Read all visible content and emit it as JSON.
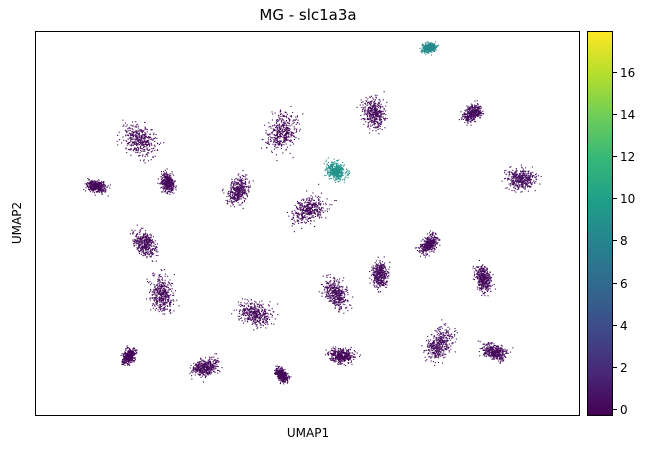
{
  "chart_data": {
    "type": "scatter",
    "title": "MG - slc1a3a",
    "xlabel": "UMAP1",
    "ylabel": "UMAP2",
    "xlim": [
      0,
      100
    ],
    "ylim": [
      0,
      100
    ],
    "grid": false,
    "colormap": "viridis",
    "colorbar": {
      "min": 0,
      "max": 17.7,
      "ticks": [
        0,
        2,
        4,
        6,
        8,
        10,
        12,
        14,
        16
      ]
    },
    "clusters": [
      {
        "x": 72,
        "y": 96,
        "value": 8.5
      },
      {
        "x": 55,
        "y": 64,
        "value": 9.0
      },
      {
        "x": 62,
        "y": 79,
        "value": 0.4
      },
      {
        "x": 45,
        "y": 74,
        "value": 0.3
      },
      {
        "x": 80,
        "y": 79,
        "value": 0.5
      },
      {
        "x": 89,
        "y": 62,
        "value": 0.6
      },
      {
        "x": 19,
        "y": 72,
        "value": 0.3
      },
      {
        "x": 24,
        "y": 61,
        "value": 0.4
      },
      {
        "x": 37,
        "y": 59,
        "value": 0.4
      },
      {
        "x": 50,
        "y": 54,
        "value": 0.3
      },
      {
        "x": 11,
        "y": 60,
        "value": 0.3
      },
      {
        "x": 20,
        "y": 45,
        "value": 0.4
      },
      {
        "x": 23,
        "y": 32,
        "value": 0.4
      },
      {
        "x": 17,
        "y": 16,
        "value": 0.3
      },
      {
        "x": 31,
        "y": 13,
        "value": 0.3
      },
      {
        "x": 40,
        "y": 27,
        "value": 0.4
      },
      {
        "x": 45,
        "y": 11,
        "value": 0.3
      },
      {
        "x": 63,
        "y": 37,
        "value": 0.5
      },
      {
        "x": 74,
        "y": 19,
        "value": 0.5
      },
      {
        "x": 82,
        "y": 36,
        "value": 0.4
      },
      {
        "x": 84,
        "y": 17,
        "value": 0.4
      },
      {
        "x": 55,
        "y": 32,
        "value": 0.4
      },
      {
        "x": 56,
        "y": 16,
        "value": 0.3
      },
      {
        "x": 72,
        "y": 45,
        "value": 0.4
      }
    ]
  }
}
